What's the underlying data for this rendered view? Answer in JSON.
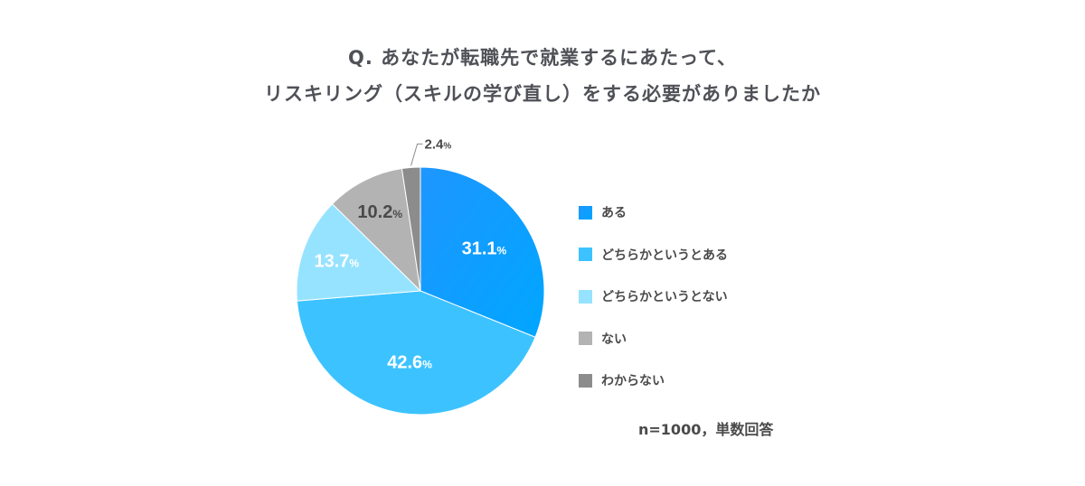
{
  "chart_data": {
    "type": "pie",
    "title_lines": [
      "Q. あなたが転職先で就業するにあたって、",
      "リスキリング（スキルの学び直し）をする必要がありましたか"
    ],
    "start": "12 o'clock",
    "direction": "clockwise",
    "unit": "%",
    "slices": [
      {
        "label": "ある",
        "value": 31.1,
        "display": "31.1",
        "color": "#1e96ff",
        "color2": "#00a6ff",
        "label_color": "#ffffff"
      },
      {
        "label": "どちらかというとある",
        "value": 42.6,
        "display": "42.6",
        "color": "#3cc3ff",
        "label_color": "#ffffff"
      },
      {
        "label": "どちらかというとない",
        "value": 13.7,
        "display": "13.7",
        "color": "#96e3ff",
        "label_color": "#ffffff"
      },
      {
        "label": "ない",
        "value": 10.2,
        "display": "10.2",
        "color": "#b3b3b3",
        "label_color": "#4a4a4a"
      },
      {
        "label": "わからない",
        "value": 2.4,
        "display": "2.4",
        "color": "#8c8c8c",
        "label_color": "#4a4a4a",
        "label_outside": true
      }
    ],
    "legend_position": "right",
    "note": "n=1000，単数回答"
  }
}
